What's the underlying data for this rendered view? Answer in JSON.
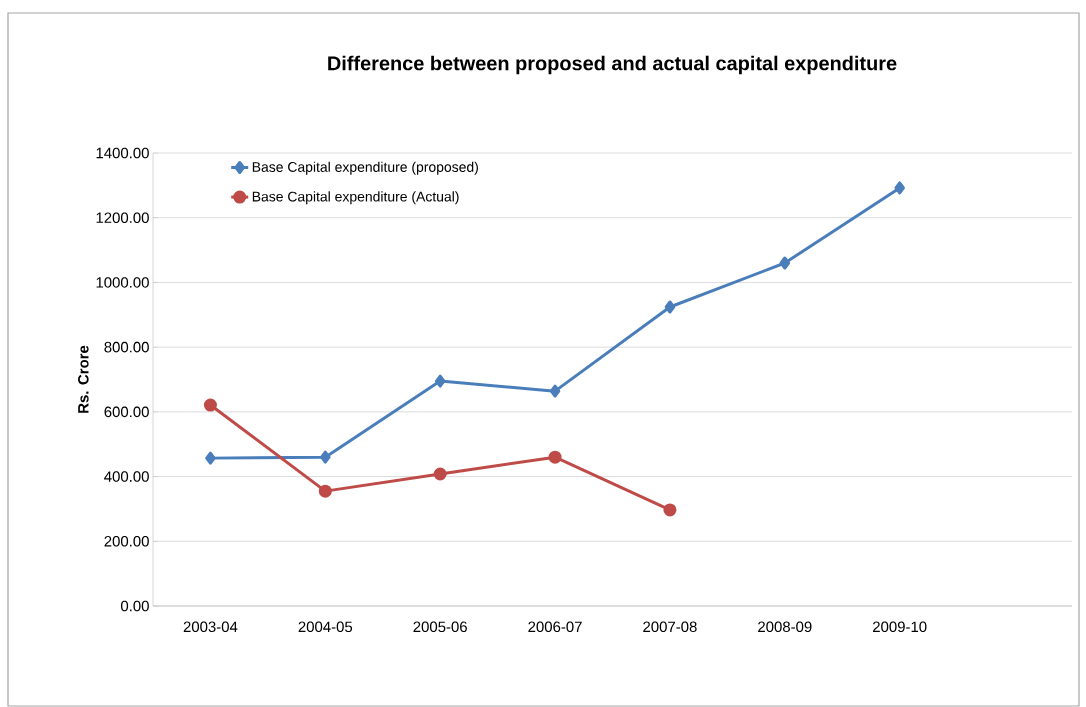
{
  "chart_data": {
    "type": "line",
    "title": "Difference between proposed and actual capital expenditure",
    "ylabel": "Rs. Crore",
    "categories": [
      "2003-04",
      "2004-05",
      "2005-06",
      "2006-07",
      "2007-08",
      "2008-09",
      "2009-10",
      null
    ],
    "series": [
      {
        "name": "Base Capital expenditure (proposed)",
        "color": "#4a7ebb",
        "marker": "diamond",
        "values": [
          457,
          460,
          695,
          664,
          924,
          1060,
          1292,
          null
        ]
      },
      {
        "name": "Base Capital expenditure (Actual)",
        "color": "#be4b48",
        "marker": "circle",
        "values": [
          621,
          355,
          408,
          460,
          297,
          null,
          null,
          null
        ]
      }
    ],
    "ylim": [
      0,
      1400
    ],
    "yticks": [
      {
        "value": 0,
        "label": "0.00"
      },
      {
        "value": 200,
        "label": "200.00"
      },
      {
        "value": 400,
        "label": "400.00"
      },
      {
        "value": 600,
        "label": "600.00"
      },
      {
        "value": 800,
        "label": "800.00"
      },
      {
        "value": 1000,
        "label": "1000.00"
      },
      {
        "value": 1200,
        "label": "1200.00"
      },
      {
        "value": 1400,
        "label": "1400.00"
      }
    ],
    "grid": "y",
    "legend": "top left",
    "line_style": "solid"
  }
}
